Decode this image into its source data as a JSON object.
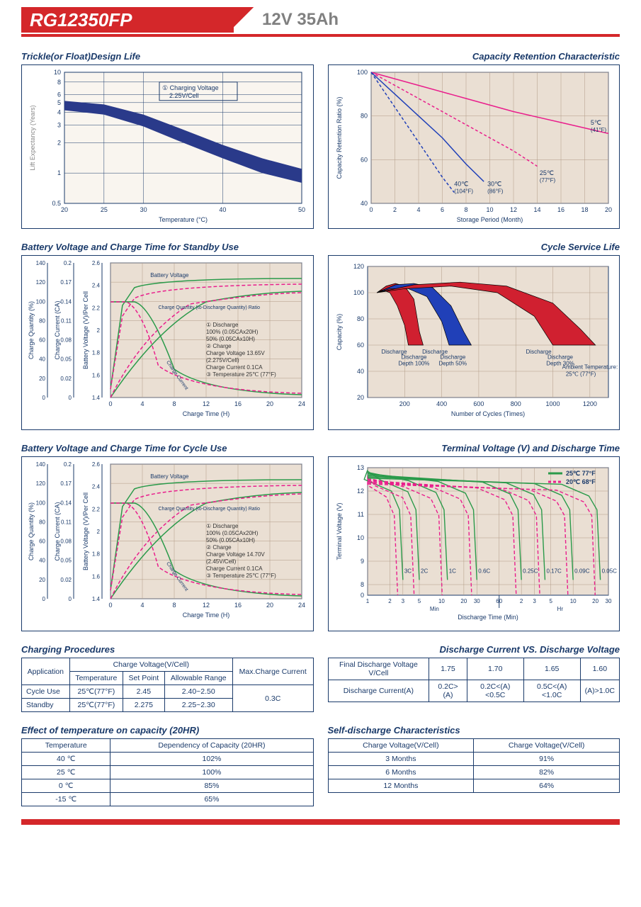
{
  "header": {
    "model": "RG12350FP",
    "spec": "12V  35Ah"
  },
  "chart1": {
    "title": "Trickle(or Float)Design Life",
    "type": "area-band",
    "x_label": "Temperature (°C)",
    "y_label": "Lift Expectancy (Years)",
    "x_ticks": [
      20,
      25,
      30,
      40,
      50
    ],
    "y_ticks": [
      0.5,
      1,
      2,
      3,
      4,
      5,
      6,
      8,
      10
    ],
    "note_marker": "①",
    "note_label": "Charging Voltage",
    "note_value": "2.25V/Cell",
    "band_color": "#2a3a8a",
    "bg": "#f9f5ef",
    "grid_color": "#1a3a6a",
    "band_upper": [
      [
        20,
        5.2
      ],
      [
        25,
        4.8
      ],
      [
        30,
        3.8
      ],
      [
        35,
        2.7
      ],
      [
        40,
        1.9
      ],
      [
        45,
        1.4
      ],
      [
        50,
        1.1
      ]
    ],
    "band_lower": [
      [
        20,
        4.2
      ],
      [
        25,
        3.8
      ],
      [
        30,
        2.9
      ],
      [
        35,
        2.0
      ],
      [
        40,
        1.4
      ],
      [
        45,
        1.0
      ],
      [
        50,
        0.8
      ]
    ]
  },
  "chart2": {
    "title": "Capacity Retention Characteristic",
    "type": "line",
    "x_label": "Storage Period (Month)",
    "y_label": "Capacity Retention Ratio (%)",
    "x_ticks": [
      0,
      2,
      4,
      6,
      8,
      10,
      12,
      14,
      16,
      18,
      20
    ],
    "y_ticks": [
      40,
      60,
      80,
      100
    ],
    "bg": "#eadfd3",
    "grid_color": "#b09a85",
    "series": [
      {
        "label": "5℃ (41°F)",
        "color": "#e91e8c",
        "dash": "0",
        "points": [
          [
            0,
            100
          ],
          [
            4,
            94
          ],
          [
            8,
            88
          ],
          [
            12,
            82
          ],
          [
            16,
            77
          ],
          [
            20,
            72
          ]
        ]
      },
      {
        "label": "25℃ (77°F)",
        "color": "#e91e8c",
        "dash": "4 3",
        "points": [
          [
            0,
            100
          ],
          [
            3,
            91
          ],
          [
            6,
            82
          ],
          [
            9,
            73
          ],
          [
            12,
            64
          ],
          [
            14,
            57
          ]
        ]
      },
      {
        "label": "30℃ (86°F)",
        "color": "#2040b8",
        "dash": "0",
        "points": [
          [
            0,
            100
          ],
          [
            2,
            90
          ],
          [
            4,
            80
          ],
          [
            6,
            70
          ],
          [
            8,
            58
          ],
          [
            9.5,
            50
          ]
        ]
      },
      {
        "label": "40℃ (104°F)",
        "color": "#2040b8",
        "dash": "4 3",
        "points": [
          [
            0,
            100
          ],
          [
            1.5,
            88
          ],
          [
            3,
            76
          ],
          [
            4.5,
            64
          ],
          [
            6,
            52
          ],
          [
            7,
            45
          ]
        ]
      }
    ],
    "line_labels": [
      {
        "text": "40℃",
        "sub": "(104°F)",
        "x": 7,
        "y": 48
      },
      {
        "text": "30℃",
        "sub": "(86°F)",
        "x": 9.8,
        "y": 48
      },
      {
        "text": "25℃",
        "sub": "(77°F)",
        "x": 14.2,
        "y": 53
      },
      {
        "text": "5℃",
        "sub": "(41°F)",
        "x": 18.5,
        "y": 76
      }
    ]
  },
  "chart3": {
    "title": "Battery Voltage and Charge Time for Standby Use",
    "x_label": "Charge Time (H)",
    "y1_label": "Charge Quantity (%)",
    "y1_ticks": [
      0,
      20,
      40,
      60,
      80,
      100,
      120,
      140
    ],
    "y1_color": "#1a3a6a",
    "y2_label": "Charge Current (CA)",
    "y2_ticks": [
      0,
      0.02,
      0.05,
      0.08,
      0.11,
      0.14,
      0.17,
      0.2
    ],
    "y2_color": "#1a3a6a",
    "y3_label": "Battery Voltage (V)/Per Cell",
    "y3_ticks": [
      1.4,
      1.6,
      1.8,
      2.0,
      2.2,
      2.4,
      2.6
    ],
    "y3_color": "#1a3a6a",
    "x_ticks": [
      0,
      4,
      8,
      12,
      16,
      20,
      24
    ],
    "bg": "#eadfd3",
    "green": "#2a9a4a",
    "pink": "#e91e8c",
    "legend": [
      "① Discharge",
      "   100% (0.05CAx20H)",
      "   50% (0.05CAx10H)",
      "② Charge",
      "   Charge Voltage 13.65V",
      "   (2.275V/Cell)",
      "   Charge Current 0.1CA",
      "③ Temperature 25℃ (77°F)"
    ],
    "label_bv": "Battery Voltage",
    "label_cq": "Charge Quantity (to-Discharge Quantity) Ratio",
    "label_cc": "Charge Current"
  },
  "chart4": {
    "title": "Cycle Service Life",
    "x_label": "Number of Cycles (Times)",
    "y_label": "Capacity (%)",
    "x_ticks": [
      200,
      400,
      600,
      800,
      1000,
      1200
    ],
    "y_ticks": [
      20,
      40,
      60,
      80,
      100,
      120
    ],
    "bg": "#eadfd3",
    "ambient": "Ambient Temperature:",
    "ambient2": "25℃ (77°F)",
    "bands": [
      {
        "label": "Discharge Depth 100%",
        "color": "#d02030",
        "outer": [
          [
            50,
            100
          ],
          [
            100,
            105
          ],
          [
            150,
            107
          ],
          [
            200,
            105
          ],
          [
            250,
            95
          ],
          [
            280,
            70
          ],
          [
            300,
            60
          ]
        ],
        "inner": [
          [
            50,
            100
          ],
          [
            80,
            102
          ],
          [
            120,
            100
          ],
          [
            160,
            90
          ],
          [
            200,
            75
          ],
          [
            220,
            60
          ]
        ]
      },
      {
        "label": "Discharge Depth 50%",
        "color": "#2040b8",
        "outer": [
          [
            50,
            100
          ],
          [
            150,
            106
          ],
          [
            250,
            107
          ],
          [
            350,
            104
          ],
          [
            450,
            90
          ],
          [
            520,
            70
          ],
          [
            560,
            60
          ]
        ],
        "inner": [
          [
            50,
            100
          ],
          [
            120,
            103
          ],
          [
            220,
            103
          ],
          [
            320,
            97
          ],
          [
            400,
            78
          ],
          [
            440,
            60
          ]
        ]
      },
      {
        "label": "Discharge Depth 30%",
        "color": "#d02030",
        "outer": [
          [
            50,
            100
          ],
          [
            250,
            106
          ],
          [
            500,
            108
          ],
          [
            750,
            105
          ],
          [
            1000,
            92
          ],
          [
            1150,
            72
          ],
          [
            1230,
            60
          ]
        ],
        "inner": [
          [
            50,
            100
          ],
          [
            200,
            103
          ],
          [
            450,
            105
          ],
          [
            700,
            100
          ],
          [
            900,
            82
          ],
          [
            1000,
            60
          ]
        ]
      }
    ]
  },
  "chart5": {
    "title": "Battery Voltage and Charge Time for Cycle Use",
    "legend": [
      "① Discharge",
      "   100% (0.05CAx20H)",
      "   50% (0.05CAx10H)",
      "② Charge",
      "   Charge Voltage 14.70V",
      "   (2.45V/Cell)",
      "   Charge Current 0.1CA",
      "③ Temperature 25℃ (77°F)"
    ]
  },
  "chart6": {
    "title": "Terminal Voltage (V) and Discharge Time",
    "x_label": "Discharge Time (Min)",
    "y_label": "Terminal Voltage (V)",
    "y_ticks": [
      0,
      8,
      9,
      10,
      11,
      12,
      13
    ],
    "x_min_ticks_label": "Min",
    "x_hr_ticks_label": "Hr",
    "x_ticks_left": [
      1,
      2,
      3,
      5,
      10,
      20,
      30,
      60
    ],
    "x_ticks_right": [
      2,
      3,
      5,
      10,
      20,
      30
    ],
    "bg": "#eadfd3",
    "legend1": "25℃ 77°F",
    "legend1_color": "#2a9a4a",
    "legend2": "20℃ 68°F",
    "legend2_color": "#e91e8c",
    "rate_labels": [
      "3C",
      "2C",
      "1C",
      "0.6C",
      "0.25C",
      "0.17C",
      "0.09C",
      "0.05C"
    ]
  },
  "table1": {
    "title": "Charging Procedures",
    "h_app": "Application",
    "h_cv": "Charge Voltage(V/Cell)",
    "h_temp": "Temperature",
    "h_sp": "Set Point",
    "h_ar": "Allowable Range",
    "h_max": "Max.Charge Current",
    "rows": [
      {
        "app": "Cycle Use",
        "temp": "25℃(77°F)",
        "sp": "2.45",
        "ar": "2.40~2.50"
      },
      {
        "app": "Standby",
        "temp": "25℃(77°F)",
        "sp": "2.275",
        "ar": "2.25~2.30"
      }
    ],
    "max": "0.3C"
  },
  "table2": {
    "title": "Discharge Current VS. Discharge Voltage",
    "h1": "Final Discharge Voltage V/Cell",
    "h2": "Discharge Current(A)",
    "cols": [
      "1.75",
      "1.70",
      "1.65",
      "1.60"
    ],
    "vals": [
      "0.2C>(A)",
      "0.2C<(A)<0.5C",
      "0.5C<(A)<1.0C",
      "(A)>1.0C"
    ]
  },
  "table3": {
    "title": "Effect of temperature on capacity (20HR)",
    "h1": "Temperature",
    "h2": "Dependency of Capacity (20HR)",
    "rows": [
      [
        "40 ℃",
        "102%"
      ],
      [
        "25 ℃",
        "100%"
      ],
      [
        "0 ℃",
        "85%"
      ],
      [
        "-15 ℃",
        "65%"
      ]
    ]
  },
  "table4": {
    "title": "Self-discharge Characteristics",
    "h1": "Charge Voltage(V/Cell)",
    "h2": "Charge Voltage(V/Cell)",
    "rows": [
      [
        "3 Months",
        "91%"
      ],
      [
        "6 Months",
        "82%"
      ],
      [
        "12 Months",
        "64%"
      ]
    ]
  }
}
